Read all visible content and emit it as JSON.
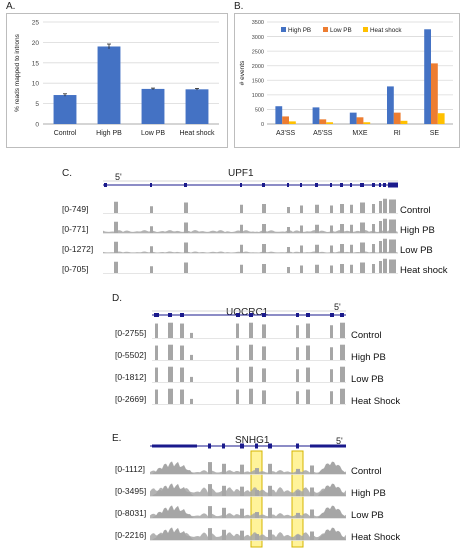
{
  "panels": {
    "a": "A.",
    "b": "B.",
    "c": "C.",
    "d": "D.",
    "e": "E."
  },
  "chart_data": [
    {
      "type": "bar",
      "ylabel": "% reads mapped to introns",
      "ylim": [
        0,
        25
      ],
      "yticks": [
        "0",
        "5",
        "10",
        "15",
        "20",
        "25"
      ],
      "categories": [
        "Control",
        "High PB",
        "Low PB",
        "Heat shock"
      ],
      "values": [
        7.1,
        19.0,
        8.6,
        8.5
      ],
      "errors": [
        0.3,
        0.6,
        0.2,
        0.2
      ],
      "color": "#4472c4",
      "grid": true
    },
    {
      "type": "bar",
      "ylabel": "# events",
      "ylim": [
        0,
        3500
      ],
      "yticks": [
        "0",
        "500",
        "1000",
        "1500",
        "2000",
        "2500",
        "3000",
        "3500"
      ],
      "categories": [
        "A3'SS",
        "A5'SS",
        "MXE",
        "RI",
        "SE"
      ],
      "legend_position": "top",
      "series": [
        {
          "name": "High PB",
          "color": "#4472c4",
          "values": [
            610,
            570,
            390,
            1290,
            3250
          ]
        },
        {
          "name": "Low PB",
          "color": "#ed7d31",
          "values": [
            260,
            160,
            230,
            390,
            2080
          ]
        },
        {
          "name": "Heat shock",
          "color": "#ffc000",
          "values": [
            90,
            60,
            60,
            110,
            370
          ]
        }
      ],
      "grid": true
    }
  ],
  "tracks": {
    "c": {
      "gene": "UPF1",
      "prime": "5'",
      "rows": [
        {
          "range": "[0-749]",
          "condition": "Control"
        },
        {
          "range": "[0-771]",
          "condition": "High PB"
        },
        {
          "range": "[0-1272]",
          "condition": "Low PB"
        },
        {
          "range": "[0-705]",
          "condition": "Heat shock"
        }
      ]
    },
    "d": {
      "gene": "UQCRC1",
      "prime": "5'",
      "rows": [
        {
          "range": "[0-2755]",
          "condition": "Control"
        },
        {
          "range": "[0-5502]",
          "condition": "High PB"
        },
        {
          "range": "[0-1812]",
          "condition": "Low PB"
        },
        {
          "range": "[0-2669]",
          "condition": "Heat Shock"
        }
      ]
    },
    "e": {
      "gene": "SNHG1",
      "prime": "5'",
      "rows": [
        {
          "range": "[0-1112]",
          "condition": "Control"
        },
        {
          "range": "[0-3495]",
          "condition": "High PB"
        },
        {
          "range": "[0-8031]",
          "condition": "Low PB"
        },
        {
          "range": "[0-2216]",
          "condition": "Heat Shock"
        }
      ]
    }
  },
  "colors": {
    "blue": "#4472c4",
    "orange": "#ed7d31",
    "yellow": "#ffc000",
    "track_gray": "#a6a6a6",
    "gene_blue": "#1a1a8c",
    "highlight": "#fff39a"
  }
}
